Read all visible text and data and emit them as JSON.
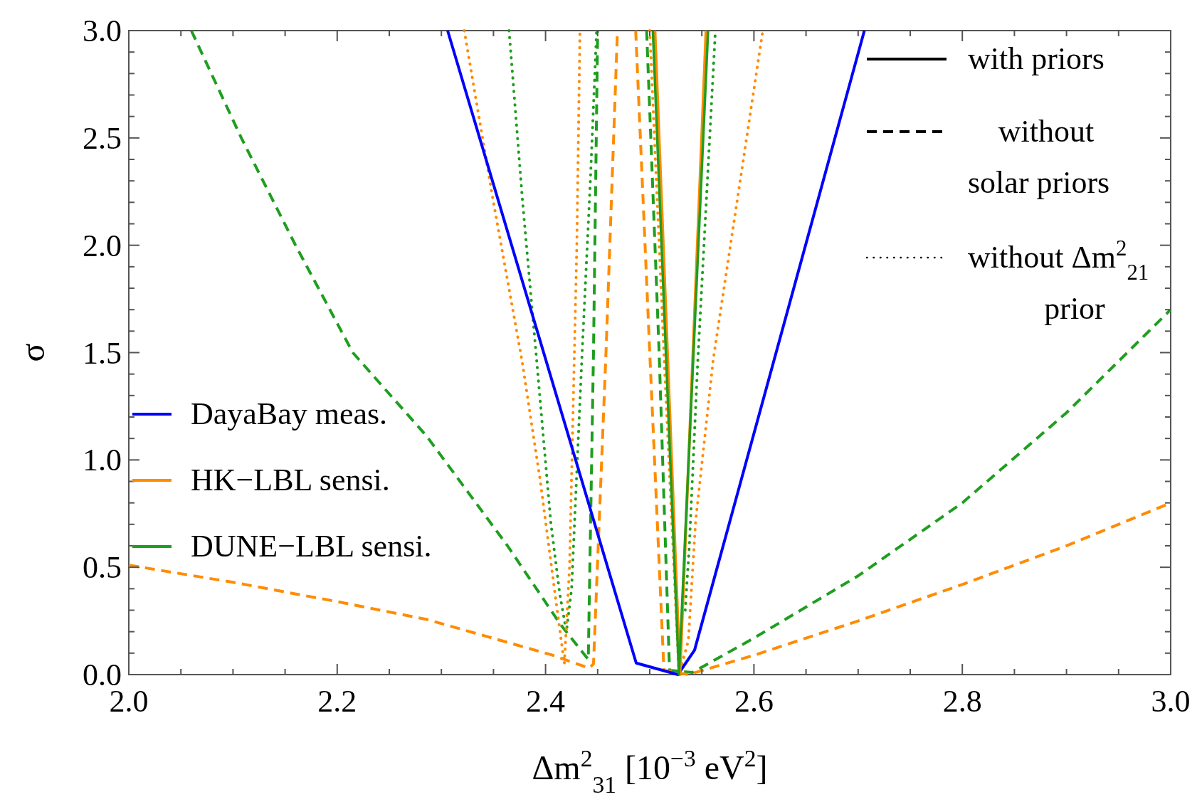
{
  "chart_data": {
    "type": "line",
    "xlabel": "Δm$^{2}$$_{31}$ [10$^{−3}$ eV$^{2}$]",
    "ylabel": "σ",
    "xlim": [
      2,
      3
    ],
    "ylim": [
      0,
      3
    ],
    "xticks": [
      {
        "value": 2,
        "label": "2.0"
      },
      {
        "value": 2.05,
        "label": null
      },
      {
        "value": 2.1,
        "label": null
      },
      {
        "value": 2.15,
        "label": null
      },
      {
        "value": 2.2,
        "label": "2.2"
      },
      {
        "value": 2.25,
        "label": null
      },
      {
        "value": 2.3,
        "label": null
      },
      {
        "value": 2.35,
        "label": null
      },
      {
        "value": 2.4,
        "label": "2.4"
      },
      {
        "value": 2.45,
        "label": null
      },
      {
        "value": 2.5,
        "label": null
      },
      {
        "value": 2.55,
        "label": null
      },
      {
        "value": 2.6,
        "label": "2.6"
      },
      {
        "value": 2.65,
        "label": null
      },
      {
        "value": 2.7,
        "label": null
      },
      {
        "value": 2.75,
        "label": null
      },
      {
        "value": 2.8,
        "label": "2.8"
      },
      {
        "value": 2.85,
        "label": null
      },
      {
        "value": 2.9,
        "label": null
      },
      {
        "value": 2.95,
        "label": null
      },
      {
        "value": 3,
        "label": "3.0"
      }
    ],
    "yticks": [
      {
        "value": 0,
        "label": "0.0"
      },
      {
        "value": 0.1,
        "label": null
      },
      {
        "value": 0.2,
        "label": null
      },
      {
        "value": 0.3,
        "label": null
      },
      {
        "value": 0.4,
        "label": null
      },
      0.5,
      {
        "value": 0.6,
        "label": null
      },
      {
        "value": 0.7,
        "label": null
      },
      {
        "value": 0.8,
        "label": null
      },
      {
        "value": 0.9,
        "label": null
      },
      {
        "value": 1,
        "label": "1.0"
      },
      {
        "value": 1.1,
        "label": null
      },
      {
        "value": 1.2,
        "label": null
      },
      {
        "value": 1.3,
        "label": null
      },
      {
        "value": 1.4,
        "label": null
      },
      1.5,
      {
        "value": 1.6,
        "label": null
      },
      {
        "value": 1.7,
        "label": null
      },
      {
        "value": 1.8,
        "label": null
      },
      {
        "value": 1.9,
        "label": null
      },
      {
        "value": 2,
        "label": "2.0"
      },
      {
        "value": 2.1,
        "label": null
      },
      {
        "value": 2.2,
        "label": null
      },
      {
        "value": 2.3,
        "label": null
      },
      {
        "value": 2.4,
        "label": null
      },
      2.5,
      {
        "value": 2.6,
        "label": null
      },
      {
        "value": 2.7,
        "label": null
      },
      {
        "value": 2.8,
        "label": null
      },
      {
        "value": 2.9,
        "label": null
      },
      {
        "value": 3,
        "label": "3.0"
      }
    ],
    "legend": "left",
    "annotations": [
      "with priors",
      "without\nsolar priors",
      "without Δm$^{2}$$_{21}$\nprior"
    ],
    "series": [
      {
        "color": "#1f9e1f",
        "line_style": "dashed",
        "x": [
          2.06,
          2.108,
          2.16,
          2.215,
          2.286,
          2.3635,
          2.414,
          2.441,
          2.446,
          2.45,
          null,
          2.497,
          2.509,
          2.519,
          2.541,
          2.6,
          2.7,
          2.8,
          2.9,
          3.0
        ],
        "values": [
          3,
          2.5,
          2,
          1.5,
          1.11,
          0.6,
          0.236,
          0.07,
          1.5,
          3,
          null,
          3,
          1.5,
          0.02,
          0.01,
          0.17,
          0.46,
          0.8,
          1.22,
          1.7
        ]
      },
      {
        "color": "#ff8c00",
        "line_style": "dashed",
        "x": [
          2.0,
          2.1,
          2.2,
          2.286,
          2.405,
          2.442,
          2.446,
          2.458,
          2.469,
          null,
          2.4865,
          2.5,
          2.5136,
          2.537,
          2.6,
          2.7,
          2.8,
          2.9,
          3.0
        ],
        "values": [
          0.51,
          0.43,
          0.34,
          0.257,
          0.093,
          0.03,
          0.05,
          1.5,
          3,
          null,
          3,
          1.5,
          0.02,
          0,
          0.09,
          0.25,
          0.42,
          0.6,
          0.8
        ]
      },
      {
        "color": "#1f9e1f",
        "line_style": "dotted",
        "x": [
          2.365,
          2.378,
          2.391,
          2.405,
          2.4135,
          2.42,
          2.425,
          2.435,
          2.443,
          2.449,
          null,
          2.534,
          2.538,
          2.546,
          2.563
        ],
        "values": [
          3,
          2.2,
          1.49,
          0.71,
          0.38,
          0.2,
          0.4,
          1.49,
          2.3,
          3,
          null,
          0.3,
          0.6,
          1.45,
          3
        ]
      },
      {
        "color": "#ff8c00",
        "line_style": "dotted",
        "x": [
          2.322,
          2.35,
          2.3775,
          2.395,
          2.409,
          2.418,
          2.423,
          2.43,
          2.433,
          null,
          2.5,
          2.514,
          2.528,
          2.537,
          2.544,
          2.561,
          2.6085
        ],
        "values": [
          3,
          2.2,
          1.46,
          0.9,
          0.38,
          0.05,
          0.5,
          2,
          3,
          null,
          3,
          1.45,
          0,
          0.157,
          0.714,
          1.47,
          3
        ]
      },
      {
        "name": "DayaBay meas.",
        "color": "#0000ff",
        "line_style": "solid",
        "x": [
          2.306,
          2.487,
          2.527,
          2.543,
          2.706
        ],
        "values": [
          3,
          0.054,
          0,
          0.114,
          3
        ]
      },
      {
        "name": "HK−LBL sensi.",
        "color": "#ff8c00",
        "line_style": "solid",
        "x": [
          2.505,
          2.529,
          2.554
        ],
        "values": [
          3,
          0,
          3
        ]
      },
      {
        "name": "DUNE−LBL sensi.",
        "color": "#1f9e1f",
        "line_style": "solid",
        "x": [
          2.503,
          2.528,
          2.556
        ],
        "values": [
          3,
          0,
          3
        ]
      }
    ]
  }
}
